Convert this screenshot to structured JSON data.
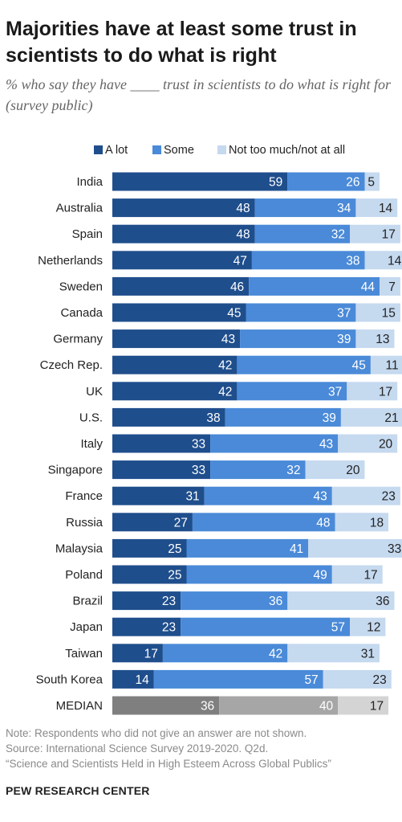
{
  "title": "Majorities have at least some trust in scientists to do what is right",
  "subtitle": "% who say they have ____ trust in scientists to do what is right for (survey public)",
  "colors": {
    "a_lot": "#1f4e8c",
    "some": "#4a8ad8",
    "not_too_much": "#c5d9ef",
    "median_a_lot": "#7f7f7f",
    "median_some": "#a6a6a6",
    "median_not_too_much": "#d4d4d4"
  },
  "chart_data": {
    "type": "bar",
    "orientation": "horizontal",
    "stacked": true,
    "legend_position": "top",
    "categories": [
      "India",
      "Australia",
      "Spain",
      "Netherlands",
      "Sweden",
      "Canada",
      "Germany",
      "Czech Rep.",
      "UK",
      "U.S.",
      "Italy",
      "Singapore",
      "France",
      "Russia",
      "Malaysia",
      "Poland",
      "Brazil",
      "Japan",
      "Taiwan",
      "South Korea",
      "MEDIAN"
    ],
    "series": [
      {
        "name": "A lot",
        "values": [
          59,
          48,
          48,
          47,
          46,
          45,
          43,
          42,
          42,
          38,
          33,
          33,
          31,
          27,
          25,
          25,
          23,
          23,
          17,
          14,
          36
        ]
      },
      {
        "name": "Some",
        "values": [
          26,
          34,
          32,
          38,
          44,
          37,
          39,
          45,
          37,
          39,
          43,
          32,
          43,
          48,
          41,
          49,
          36,
          57,
          42,
          57,
          40
        ]
      },
      {
        "name": "Not too much/not at all",
        "values": [
          5,
          14,
          17,
          14,
          7,
          15,
          13,
          11,
          17,
          21,
          20,
          20,
          23,
          18,
          33,
          17,
          36,
          12,
          31,
          23,
          17
        ]
      }
    ]
  },
  "footer": {
    "note": "Note: Respondents who did not give an answer are not shown.",
    "source": "Source: International Science Survey 2019-2020. Q2d.",
    "report": "“Science and Scientists Held in High Esteem Across Global Publics”"
  },
  "brand": "PEW RESEARCH CENTER"
}
